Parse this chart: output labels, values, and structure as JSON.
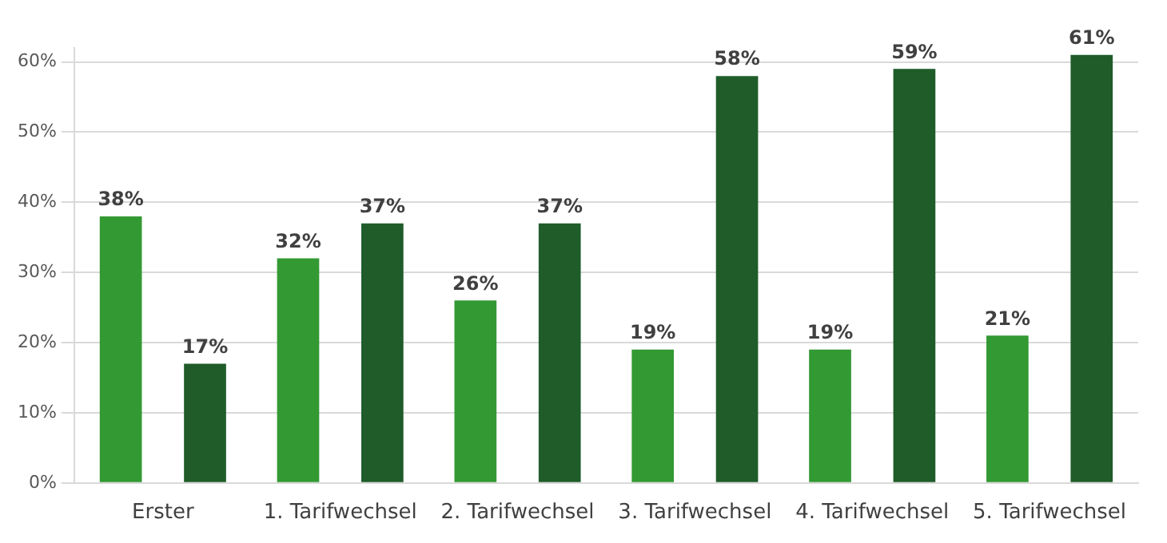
{
  "chart_data": {
    "type": "bar",
    "categories": [
      "Erster",
      "1. Tarifwechsel",
      "2. Tarifwechsel",
      "3. Tarifwechsel",
      "4. Tarifwechsel",
      "5. Tarifwechsel"
    ],
    "series": [
      {
        "color": "#339933",
        "values": [
          38,
          32,
          26,
          19,
          19,
          21
        ],
        "value_labels": [
          "38%",
          "32%",
          "26%",
          "19%",
          "19%",
          "21%"
        ]
      },
      {
        "color": "#1f5c2a",
        "values": [
          17,
          37,
          37,
          58,
          59,
          61
        ],
        "value_labels": [
          "17%",
          "37%",
          "37%",
          "58%",
          "59%",
          "61%"
        ]
      }
    ],
    "ylim": [
      0,
      62
    ],
    "yticks": [
      {
        "value": 0,
        "label": "0%"
      },
      {
        "value": 10,
        "label": "10%"
      },
      {
        "value": 20,
        "label": "20%"
      },
      {
        "value": 30,
        "label": "30%"
      },
      {
        "value": 40,
        "label": "40%"
      },
      {
        "value": 50,
        "label": "50%"
      },
      {
        "value": 60,
        "label": "60%"
      }
    ],
    "grid": "y",
    "legend": false
  }
}
